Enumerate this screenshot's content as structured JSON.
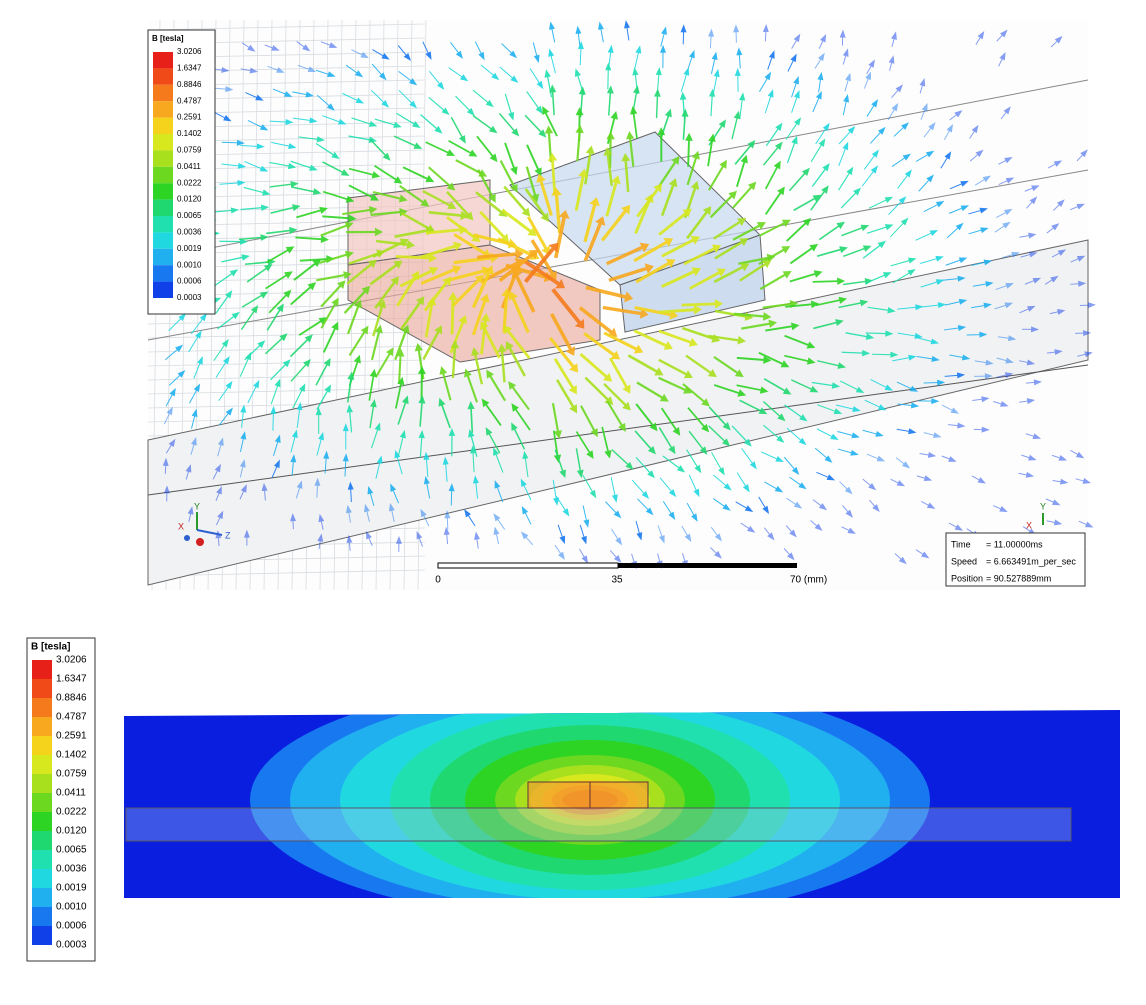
{
  "panels": [
    {
      "legend": {
        "title": "B [tesla]",
        "labels": [
          "3.0206",
          "1.6347",
          "0.8846",
          "0.4787",
          "0.2591",
          "0.1402",
          "0.0759",
          "0.0411",
          "0.0222",
          "0.0120",
          "0.0065",
          "0.0036",
          "0.0019",
          "0.0010",
          "0.0006",
          "0.0003"
        ],
        "colors": [
          "#e8201a",
          "#f04a18",
          "#f57a1c",
          "#f8a81e",
          "#f5d21c",
          "#d8e81e",
          "#a8e01e",
          "#6cd820",
          "#2ed424",
          "#20d870",
          "#20e0b0",
          "#20d8e0",
          "#20b0f0",
          "#1878f0",
          "#1040e8"
        ]
      },
      "scale_bar": {
        "labels": [
          "0",
          "35",
          "70 (mm)"
        ]
      },
      "info": {
        "rows": [
          [
            "Time",
            "= 11.00000ms"
          ],
          [
            "Speed",
            "= 6.663491m_per_sec"
          ],
          [
            "Position",
            "= 90.527889mm"
          ]
        ]
      },
      "triad_left": [
        "X",
        "Y",
        "Z"
      ],
      "triad_right": [
        "X",
        "Y"
      ]
    },
    {
      "legend": {
        "title": "B [tesla]",
        "labels": [
          "3.0206",
          "1.6347",
          "0.8846",
          "0.4787",
          "0.2591",
          "0.1402",
          "0.0759",
          "0.0411",
          "0.0222",
          "0.0120",
          "0.0065",
          "0.0036",
          "0.0019",
          "0.0010",
          "0.0006",
          "0.0003"
        ],
        "colors": [
          "#e8201a",
          "#f04a18",
          "#f57a1c",
          "#f8a81e",
          "#f5d21c",
          "#d8e81e",
          "#a8e01e",
          "#6cd820",
          "#2ed424",
          "#20d870",
          "#20e0b0",
          "#20d8e0",
          "#20b0f0",
          "#1878f0",
          "#1040e8"
        ]
      }
    }
  ]
}
